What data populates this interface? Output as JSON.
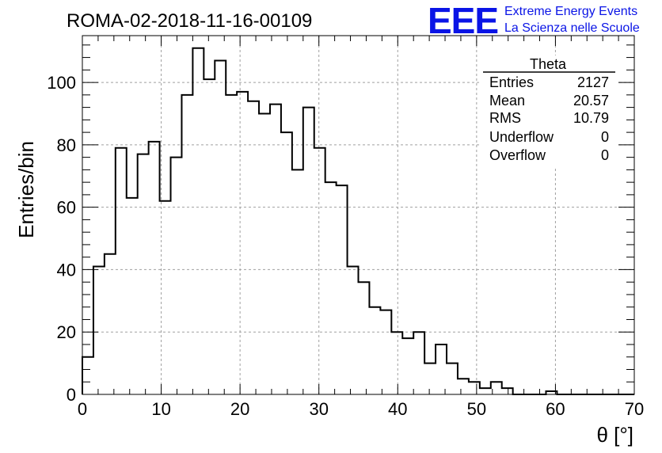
{
  "page": {
    "title": "ROMA-02-2018-11-16-00109"
  },
  "logo": {
    "mark": "EEE",
    "line1": "Extreme Energy Events",
    "line2": "La Scienza nelle Scuole",
    "color": "#0a14e6"
  },
  "stats_box": {
    "title": "Theta",
    "rows": [
      {
        "label": "Entries",
        "value": "2127"
      },
      {
        "label": "Mean",
        "value": "20.57"
      },
      {
        "label": "RMS",
        "value": "10.79"
      },
      {
        "label": "Underflow",
        "value": "0"
      },
      {
        "label": "Overflow",
        "value": "0"
      }
    ]
  },
  "chart_data": {
    "type": "bar",
    "histogram": true,
    "xlabel": "θ [°]",
    "ylabel": "Entries/bin",
    "xlim": [
      0,
      70
    ],
    "ylim": [
      0,
      115
    ],
    "x_ticks": [
      0,
      10,
      20,
      30,
      40,
      50,
      60,
      70
    ],
    "y_ticks": [
      0,
      20,
      40,
      60,
      80,
      100
    ],
    "grid": true,
    "bin_width": 1.4,
    "bin_edges_start": 0,
    "values": [
      12,
      41,
      45,
      79,
      63,
      77,
      81,
      62,
      76,
      96,
      111,
      101,
      107,
      96,
      97,
      94,
      90,
      93,
      84,
      72,
      92,
      79,
      68,
      67,
      41,
      36,
      28,
      27,
      20,
      18,
      20,
      10,
      16,
      10,
      5,
      4,
      2,
      4,
      2,
      0,
      0,
      0,
      1,
      0,
      0,
      0,
      0,
      0,
      0,
      0
    ],
    "line_color": "#000000"
  }
}
